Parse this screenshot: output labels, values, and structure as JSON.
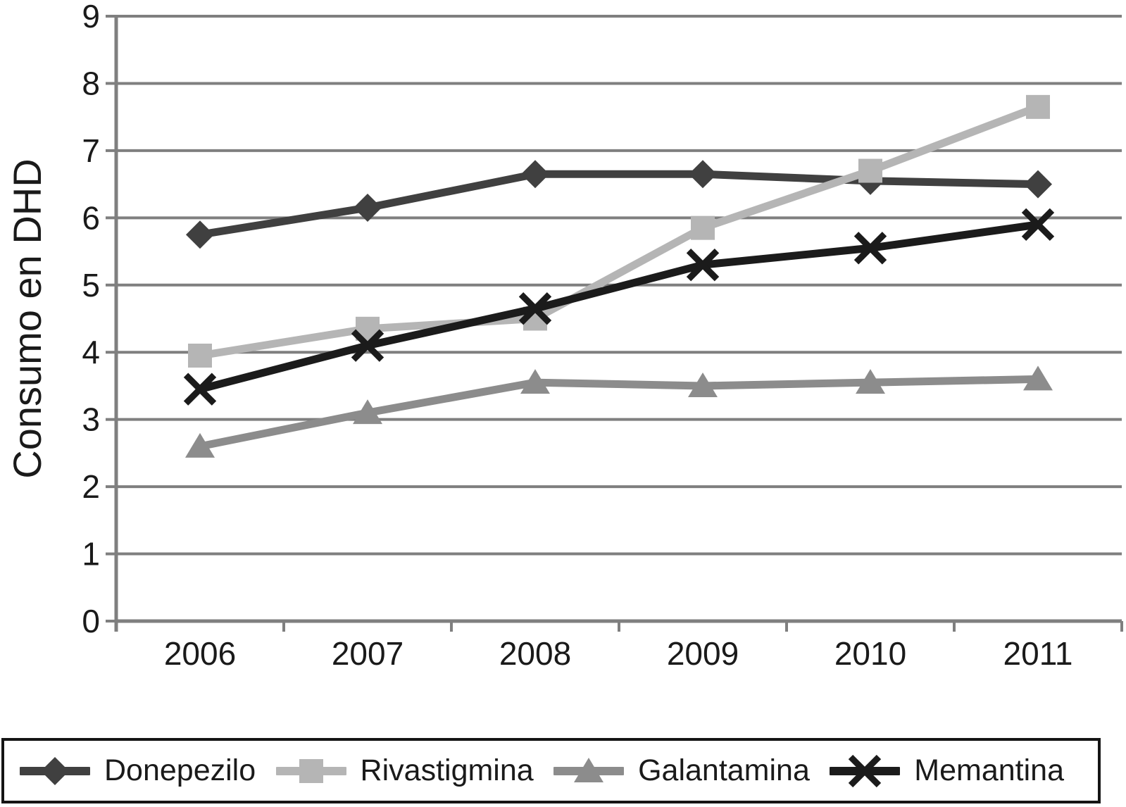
{
  "chart_data": {
    "type": "line",
    "title": "",
    "xlabel": "",
    "ylabel": "Consumo en DHD",
    "categories": [
      "2006",
      "2007",
      "2008",
      "2009",
      "2010",
      "2011"
    ],
    "ylim": [
      0,
      9
    ],
    "ytick_step": 1,
    "ytick_labels": [
      "0",
      "1",
      "2",
      "3",
      "4",
      "5",
      "6",
      "7",
      "8",
      "9"
    ],
    "grid": true,
    "legend_position": "bottom",
    "axis_color": "#7f7f7f",
    "text_color": "#1a1a1a",
    "series": [
      {
        "name": "Donepezilo",
        "marker": "diamond",
        "color": "#404040",
        "values": [
          5.75,
          6.15,
          6.65,
          6.65,
          6.55,
          6.5
        ]
      },
      {
        "name": "Rivastigmina",
        "marker": "square",
        "color": "#b5b5b5",
        "values": [
          3.95,
          4.35,
          4.5,
          5.85,
          6.7,
          7.65
        ]
      },
      {
        "name": "Galantamina",
        "marker": "triangle",
        "color": "#8c8c8c",
        "values": [
          2.6,
          3.1,
          3.55,
          3.5,
          3.55,
          3.6
        ]
      },
      {
        "name": "Memantina",
        "marker": "x",
        "color": "#1b1b1b",
        "values": [
          3.45,
          4.1,
          4.65,
          5.3,
          5.55,
          5.9
        ]
      }
    ]
  }
}
